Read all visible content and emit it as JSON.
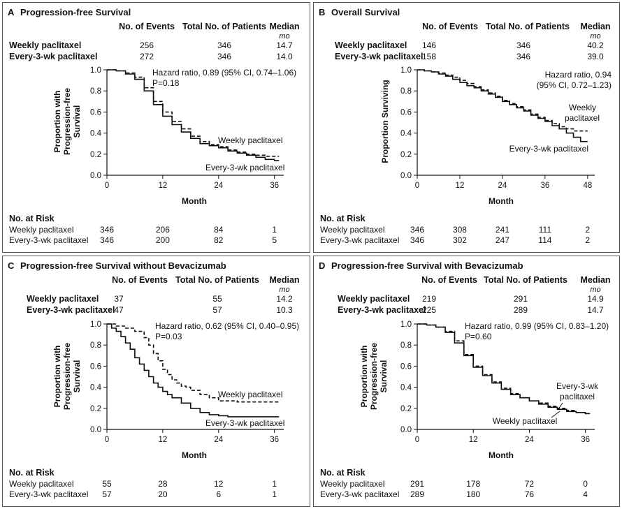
{
  "legend_entries": [
    "Weekly paclitaxel",
    "Every-3-wk paclitaxel"
  ],
  "headers": {
    "events": "No. of Events",
    "patients": "Total No. of Patients",
    "median": "Median",
    "median_unit": "mo"
  },
  "risk_title": "No. at Risk",
  "x_label": "Month",
  "colors": {
    "line": "#111111",
    "frame": "#555555"
  },
  "chart_data": [
    {
      "id": "A",
      "letter": "A",
      "title": "Progression-free Survival",
      "type": "line",
      "ylabel_lines": [
        "Proportion with",
        "Progression-free",
        "Survival"
      ],
      "xlim": [
        0,
        38
      ],
      "ylim": [
        0,
        1
      ],
      "xticks": [
        "0",
        "12",
        "24",
        "36"
      ],
      "yticks": [
        "0.0",
        "0.2",
        "0.4",
        "0.6",
        "0.8",
        "1.0"
      ],
      "stats": [
        {
          "group": "Weekly paclitaxel",
          "events": "256",
          "patients": "346",
          "median": "14.7"
        },
        {
          "group": "Every-3-wk paclitaxel",
          "events": "272",
          "patients": "346",
          "median": "14.0"
        }
      ],
      "note_lines": [
        "Hazard ratio, 0.89 (95% CI, 0.74–1.06)",
        "P=0.18"
      ],
      "curve_labels": [
        "Weekly paclitaxel",
        "Every-3-wk paclitaxel"
      ],
      "series": [
        {
          "name": "Weekly paclitaxel",
          "style": "dashed",
          "x": [
            0,
            2,
            4,
            6,
            8,
            10,
            12,
            14,
            16,
            18,
            20,
            22,
            24,
            26,
            28,
            30,
            32,
            34,
            36,
            37
          ],
          "y": [
            1.0,
            0.99,
            0.97,
            0.93,
            0.83,
            0.7,
            0.6,
            0.51,
            0.44,
            0.37,
            0.32,
            0.29,
            0.27,
            0.24,
            0.22,
            0.2,
            0.19,
            0.18,
            0.18,
            0.18
          ]
        },
        {
          "name": "Every-3-wk paclitaxel",
          "style": "solid",
          "x": [
            0,
            2,
            4,
            6,
            8,
            10,
            12,
            14,
            16,
            18,
            20,
            22,
            24,
            26,
            28,
            30,
            32,
            34,
            36,
            37
          ],
          "y": [
            1.0,
            0.99,
            0.96,
            0.91,
            0.8,
            0.67,
            0.56,
            0.48,
            0.41,
            0.35,
            0.3,
            0.28,
            0.26,
            0.23,
            0.21,
            0.19,
            0.17,
            0.15,
            0.14,
            0.14
          ]
        }
      ],
      "risk": {
        "ticks": [
          "0",
          "12",
          "24",
          "36"
        ],
        "rows": [
          {
            "group": "Weekly paclitaxel",
            "values": [
              "346",
              "206",
              "84",
              "1"
            ]
          },
          {
            "group": "Every-3-wk paclitaxel",
            "values": [
              "346",
              "200",
              "82",
              "5"
            ]
          }
        ]
      }
    },
    {
      "id": "B",
      "letter": "B",
      "title": "Overall Survival",
      "type": "line",
      "ylabel_lines": [
        "Proportion Surviving"
      ],
      "xlim": [
        0,
        50
      ],
      "ylim": [
        0,
        1
      ],
      "xticks": [
        "0",
        "12",
        "24",
        "36",
        "48"
      ],
      "yticks": [
        "0.0",
        "0.2",
        "0.4",
        "0.6",
        "0.8",
        "1.0"
      ],
      "stats": [
        {
          "group": "Weekly paclitaxel",
          "events": "146",
          "patients": "346",
          "median": "40.2"
        },
        {
          "group": "Every-3-wk paclitaxel",
          "events": "158",
          "patients": "346",
          "median": "39.0"
        }
      ],
      "note_lines": [
        "Hazard ratio, 0.94",
        "(95% CI, 0.72–1.23)"
      ],
      "curve_labels": [
        "Weekly",
        "paclitaxel",
        "Every-3-wk paclitaxel"
      ],
      "series": [
        {
          "name": "Weekly paclitaxel",
          "style": "dashed",
          "x": [
            0,
            2,
            4,
            6,
            8,
            10,
            12,
            14,
            16,
            18,
            20,
            22,
            24,
            26,
            28,
            30,
            32,
            34,
            36,
            38,
            40,
            42,
            44,
            46,
            48
          ],
          "y": [
            1.0,
            0.99,
            0.98,
            0.97,
            0.95,
            0.93,
            0.9,
            0.87,
            0.84,
            0.81,
            0.78,
            0.75,
            0.71,
            0.68,
            0.65,
            0.62,
            0.58,
            0.55,
            0.52,
            0.49,
            0.46,
            0.44,
            0.42,
            0.42,
            0.42
          ]
        },
        {
          "name": "Every-3-wk paclitaxel",
          "style": "solid",
          "x": [
            0,
            2,
            4,
            6,
            8,
            10,
            12,
            14,
            16,
            18,
            20,
            22,
            24,
            26,
            28,
            30,
            32,
            34,
            36,
            38,
            40,
            42,
            44,
            46,
            48
          ],
          "y": [
            1.0,
            0.99,
            0.98,
            0.96,
            0.94,
            0.91,
            0.88,
            0.85,
            0.83,
            0.8,
            0.77,
            0.74,
            0.7,
            0.67,
            0.64,
            0.61,
            0.57,
            0.54,
            0.51,
            0.47,
            0.44,
            0.4,
            0.36,
            0.32,
            0.32
          ]
        }
      ],
      "risk": {
        "ticks": [
          "0",
          "12",
          "24",
          "36",
          "48"
        ],
        "rows": [
          {
            "group": "Weekly paclitaxel",
            "values": [
              "346",
              "308",
              "241",
              "111",
              "2"
            ]
          },
          {
            "group": "Every-3-wk paclitaxel",
            "values": [
              "346",
              "302",
              "247",
              "114",
              "2"
            ]
          }
        ]
      }
    },
    {
      "id": "C",
      "letter": "C",
      "title": "Progression-free Survival without Bevacizumab",
      "type": "line",
      "ylabel_lines": [
        "Proportion with",
        "Progression-free",
        "Survival"
      ],
      "xlim": [
        0,
        38
      ],
      "ylim": [
        0,
        1
      ],
      "xticks": [
        "0",
        "12",
        "24",
        "36"
      ],
      "yticks": [
        "0.0",
        "0.2",
        "0.4",
        "0.6",
        "0.8",
        "1.0"
      ],
      "stats": [
        {
          "group": "Weekly paclitaxel",
          "events": "37",
          "patients": "55",
          "median": "14.2"
        },
        {
          "group": "Every-3-wk paclitaxel",
          "events": "47",
          "patients": "57",
          "median": "10.3"
        }
      ],
      "note_lines": [
        "Hazard ratio, 0.62 (95% CI, 0.40–0.95)",
        "P=0.03"
      ],
      "curve_labels": [
        "Weekly paclitaxel",
        "Every-3-wk paclitaxel"
      ],
      "series": [
        {
          "name": "Weekly paclitaxel",
          "style": "dashed",
          "x": [
            0,
            2,
            4,
            6,
            8,
            9,
            10,
            11,
            12,
            13,
            14,
            15,
            16,
            17,
            18,
            20,
            22,
            24,
            26,
            28,
            30,
            32,
            34,
            36,
            37
          ],
          "y": [
            1.0,
            0.98,
            0.96,
            0.93,
            0.87,
            0.8,
            0.72,
            0.65,
            0.57,
            0.52,
            0.47,
            0.44,
            0.41,
            0.4,
            0.37,
            0.33,
            0.3,
            0.27,
            0.27,
            0.26,
            0.26,
            0.26,
            0.26,
            0.26,
            0.26
          ]
        },
        {
          "name": "Every-3-wk paclitaxel",
          "style": "solid",
          "x": [
            0,
            1,
            2,
            3,
            4,
            5,
            6,
            7,
            8,
            9,
            10,
            11,
            12,
            13,
            14,
            16,
            18,
            20,
            22,
            24,
            26,
            28,
            30,
            32,
            34,
            36,
            37
          ],
          "y": [
            1.0,
            0.96,
            0.93,
            0.88,
            0.82,
            0.76,
            0.68,
            0.62,
            0.56,
            0.5,
            0.44,
            0.4,
            0.36,
            0.33,
            0.3,
            0.25,
            0.2,
            0.16,
            0.14,
            0.13,
            0.12,
            0.12,
            0.12,
            0.12,
            0.12,
            0.12,
            0.12
          ]
        }
      ],
      "risk": {
        "ticks": [
          "0",
          "12",
          "24",
          "36"
        ],
        "rows": [
          {
            "group": "Weekly paclitaxel",
            "values": [
              "55",
              "28",
              "12",
              "1"
            ]
          },
          {
            "group": "Every-3-wk paclitaxel",
            "values": [
              "57",
              "20",
              "6",
              "1"
            ]
          }
        ]
      }
    },
    {
      "id": "D",
      "letter": "D",
      "title": "Progression-free Survival with Bevacizumab",
      "type": "line",
      "ylabel_lines": [
        "Proportion with",
        "Progression-free",
        "Survival"
      ],
      "xlim": [
        0,
        38
      ],
      "ylim": [
        0,
        1
      ],
      "xticks": [
        "0",
        "12",
        "24",
        "36"
      ],
      "yticks": [
        "0.0",
        "0.2",
        "0.4",
        "0.6",
        "0.8",
        "1.0"
      ],
      "stats": [
        {
          "group": "Weekly paclitaxel",
          "events": "219",
          "patients": "291",
          "median": "14.9"
        },
        {
          "group": "Every-3-wk paclitaxel",
          "events": "225",
          "patients": "289",
          "median": "14.7"
        }
      ],
      "note_lines": [
        "Hazard ratio, 0.99 (95% CI, 0.83–1.20)",
        "P=0.60"
      ],
      "curve_labels": [
        "Every-3-wk",
        "paclitaxel",
        "Weekly paclitaxel"
      ],
      "series": [
        {
          "name": "Weekly paclitaxel",
          "style": "dashed",
          "x": [
            0,
            2,
            4,
            6,
            8,
            10,
            12,
            14,
            16,
            18,
            20,
            22,
            24,
            26,
            28,
            30,
            32,
            34,
            36,
            37
          ],
          "y": [
            1.0,
            0.99,
            0.97,
            0.93,
            0.84,
            0.71,
            0.6,
            0.52,
            0.45,
            0.39,
            0.34,
            0.3,
            0.27,
            0.25,
            0.22,
            0.2,
            0.18,
            0.16,
            0.15,
            0.15
          ]
        },
        {
          "name": "Every-3-wk paclitaxel",
          "style": "solid",
          "x": [
            0,
            2,
            4,
            6,
            8,
            10,
            12,
            14,
            16,
            18,
            20,
            22,
            24,
            26,
            28,
            30,
            32,
            34,
            36,
            37
          ],
          "y": [
            1.0,
            0.99,
            0.97,
            0.92,
            0.82,
            0.7,
            0.59,
            0.51,
            0.44,
            0.38,
            0.33,
            0.3,
            0.27,
            0.24,
            0.21,
            0.19,
            0.17,
            0.16,
            0.15,
            0.15
          ]
        }
      ],
      "risk": {
        "ticks": [
          "0",
          "12",
          "24",
          "36"
        ],
        "rows": [
          {
            "group": "Weekly paclitaxel",
            "values": [
              "291",
              "178",
              "72",
              "0"
            ]
          },
          {
            "group": "Every-3-wk paclitaxel",
            "values": [
              "289",
              "180",
              "76",
              "4"
            ]
          }
        ]
      }
    }
  ]
}
